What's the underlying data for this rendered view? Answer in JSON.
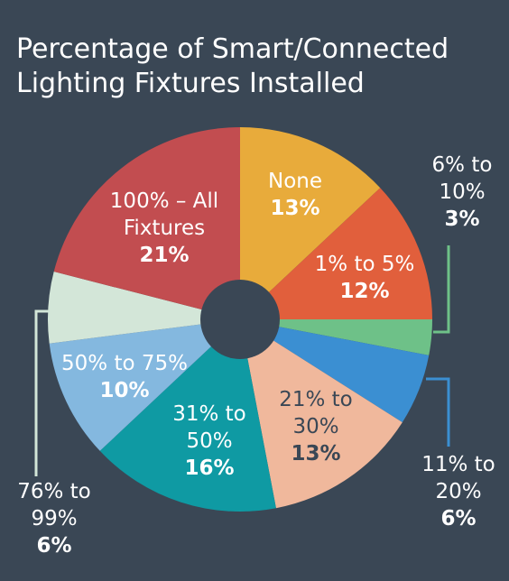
{
  "chart_data": {
    "type": "pie",
    "title_lines": [
      "Percentage of Smart/Connected",
      "Lighting Fixtures Installed"
    ],
    "slices": [
      {
        "label_lines": [
          "None"
        ],
        "pct_text": "13%",
        "value": 13,
        "color": "#e8ab3b",
        "text_color": "#ffffff",
        "pct_color": "#ffffff"
      },
      {
        "label_lines": [
          "1% to 5%"
        ],
        "pct_text": "12%",
        "value": 12,
        "color": "#e15f3c",
        "text_color": "#ffffff",
        "pct_color": "#ffffff"
      },
      {
        "label_lines": [
          "6% to",
          "10%"
        ],
        "pct_text": "3%",
        "value": 3,
        "color": "#6ec188",
        "text_color": "#ffffff",
        "pct_color": "#ffffff"
      },
      {
        "label_lines": [
          "11% to",
          "20%"
        ],
        "pct_text": "6%",
        "value": 6,
        "color": "#3b8fd2",
        "text_color": "#ffffff",
        "pct_color": "#ffffff"
      },
      {
        "label_lines": [
          "21% to",
          "30%"
        ],
        "pct_text": "13%",
        "value": 13,
        "color": "#f0b89c",
        "text_color": "#3a4755",
        "pct_color": "#3a4755"
      },
      {
        "label_lines": [
          "31% to",
          "50%"
        ],
        "pct_text": "16%",
        "value": 16,
        "color": "#0f9aa3",
        "text_color": "#ffffff",
        "pct_color": "#ffffff"
      },
      {
        "label_lines": [
          "50% to 75%"
        ],
        "pct_text": "10%",
        "value": 10,
        "color": "#84b8df",
        "text_color": "#ffffff",
        "pct_color": "#ffffff"
      },
      {
        "label_lines": [
          "76% to",
          "99%"
        ],
        "pct_text": "6%",
        "value": 6,
        "color": "#d3e6d8",
        "text_color": "#ffffff",
        "pct_color": "#ffffff"
      },
      {
        "label_lines": [
          "100% – All",
          "Fixtures"
        ],
        "pct_text": "21%",
        "value": 21,
        "color": "#c24d50",
        "text_color": "#ffffff",
        "pct_color": "#ffffff"
      }
    ],
    "center_hole_color": "#3a4755"
  }
}
